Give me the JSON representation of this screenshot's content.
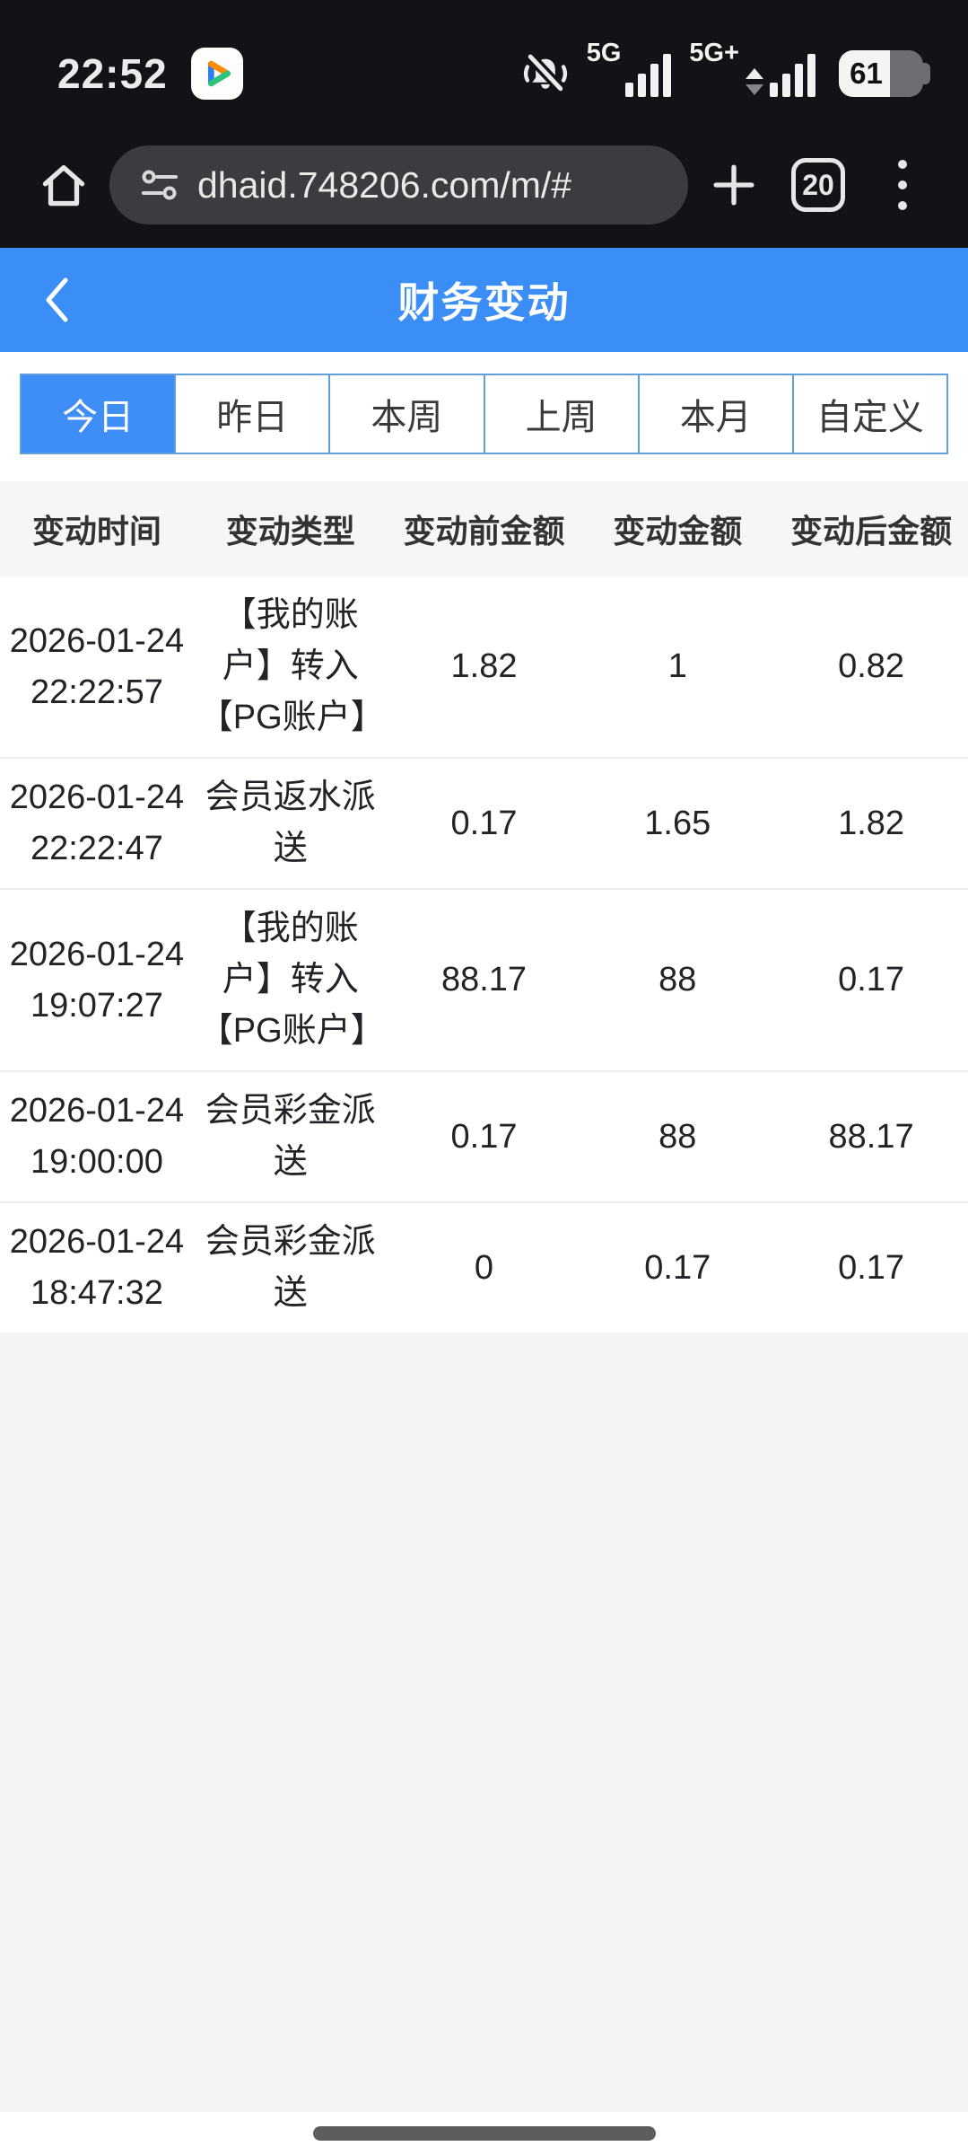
{
  "status_bar": {
    "time": "22:52",
    "network_1": "5G",
    "network_2": "5G+",
    "battery_level": "61"
  },
  "browser": {
    "url": "dhaid.748206.com/m/#",
    "tab_count": "20"
  },
  "header": {
    "title": "财务变动"
  },
  "filter_tabs": {
    "items": [
      {
        "label": "今日",
        "active": true
      },
      {
        "label": "昨日",
        "active": false
      },
      {
        "label": "本周",
        "active": false
      },
      {
        "label": "上周",
        "active": false
      },
      {
        "label": "本月",
        "active": false
      },
      {
        "label": "自定义",
        "active": false
      }
    ]
  },
  "table": {
    "columns": [
      "变动时间",
      "变动类型",
      "变动前金额",
      "变动金额",
      "变动后金额"
    ],
    "rows": [
      {
        "date": "2026-01-24",
        "time": "22:22:57",
        "type": "【我的账户】转入【PG账户】",
        "before": "1.82",
        "amount": "1",
        "after": "0.82"
      },
      {
        "date": "2026-01-24",
        "time": "22:22:47",
        "type": "会员返水派送",
        "before": "0.17",
        "amount": "1.65",
        "after": "1.82"
      },
      {
        "date": "2026-01-24",
        "time": "19:07:27",
        "type": "【我的账户】转入【PG账户】",
        "before": "88.17",
        "amount": "88",
        "after": "0.17"
      },
      {
        "date": "2026-01-24",
        "time": "19:00:00",
        "type": "会员彩金派送",
        "before": "0.17",
        "amount": "88",
        "after": "88.17"
      },
      {
        "date": "2026-01-24",
        "time": "18:47:32",
        "type": "会员彩金派送",
        "before": "0",
        "amount": "0.17",
        "after": "0.17"
      }
    ]
  },
  "icons": {
    "app_badge": "play-triangle",
    "mute": "bell-slash",
    "home": "home-outline",
    "url_leading": "tune-controls",
    "new_tab": "plus",
    "menu": "kebab-vertical",
    "back": "chevron-left"
  },
  "colors": {
    "accent_blue": "#3b8ef6",
    "tab_border_blue": "#5f9fda",
    "status_bar_bg": "#131317",
    "table_header_bg": "#f5f6f7",
    "page_filler_bg": "#f3f4f6"
  }
}
